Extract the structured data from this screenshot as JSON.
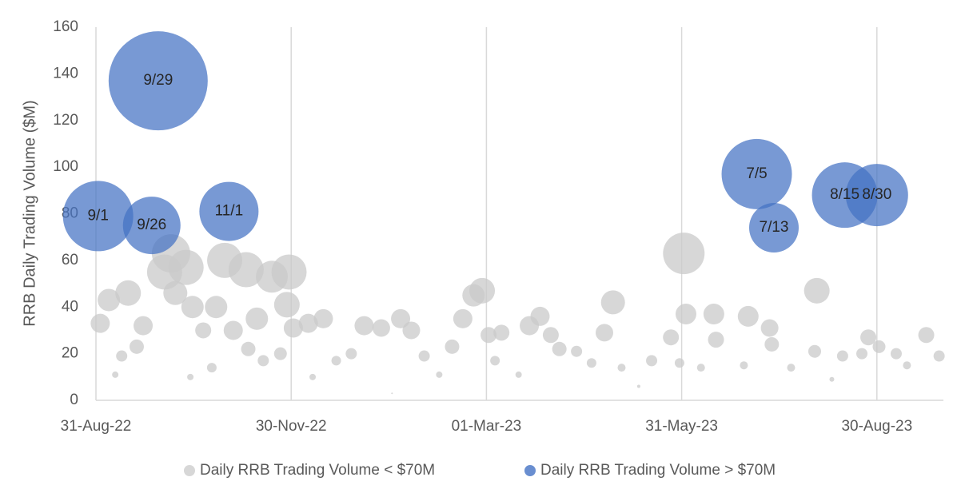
{
  "chart_data": {
    "type": "bubble",
    "y_label": "RRB Daily Trading Volume ($M)",
    "xlim": [
      "2022-08-31",
      "2023-09-30"
    ],
    "xticks": [
      {
        "value": "2022-08-31",
        "label": "31-Aug-22"
      },
      {
        "value": "2022-11-30",
        "label": "30-Nov-22"
      },
      {
        "value": "2023-03-01",
        "label": "01-Mar-23"
      },
      {
        "value": "2023-05-31",
        "label": "31-May-23"
      },
      {
        "value": "2023-08-30",
        "label": "30-Aug-23"
      }
    ],
    "ylim": [
      0,
      160
    ],
    "yticks": [
      0,
      20,
      40,
      60,
      80,
      100,
      120,
      140,
      160
    ],
    "grid": "x",
    "legend": "bottom",
    "series": [
      {
        "name": "Daily RRB Trading Volume < $70M",
        "color": "#c9c9c9",
        "x": [
          "2022-09-02",
          "2022-09-06",
          "2022-09-09",
          "2022-09-12",
          "2022-09-15",
          "2022-09-19",
          "2022-09-22",
          "2022-10-02",
          "2022-10-05",
          "2022-10-07",
          "2022-10-12",
          "2022-10-14",
          "2022-10-15",
          "2022-10-20",
          "2022-10-24",
          "2022-10-26",
          "2022-10-30",
          "2022-11-03",
          "2022-11-09",
          "2022-11-10",
          "2022-11-14",
          "2022-11-17",
          "2022-11-21",
          "2022-11-25",
          "2022-11-28",
          "2022-11-29",
          "2022-12-01",
          "2022-12-08",
          "2022-12-10",
          "2022-12-15",
          "2022-12-21",
          "2022-12-28",
          "2023-01-03",
          "2023-01-11",
          "2023-01-16",
          "2023-01-20",
          "2023-01-25",
          "2023-01-31",
          "2023-02-07",
          "2023-02-13",
          "2023-02-18",
          "2023-02-23",
          "2023-02-27",
          "2023-03-02",
          "2023-03-05",
          "2023-03-08",
          "2023-03-16",
          "2023-03-21",
          "2023-03-26",
          "2023-03-31",
          "2023-04-04",
          "2023-04-12",
          "2023-04-19",
          "2023-04-25",
          "2023-04-29",
          "2023-05-03",
          "2023-05-11",
          "2023-05-17",
          "2023-05-26",
          "2023-05-30",
          "2023-06-01",
          "2023-06-02",
          "2023-06-09",
          "2023-06-15",
          "2023-06-16",
          "2023-06-29",
          "2023-07-01",
          "2023-07-11",
          "2023-07-12",
          "2023-07-21",
          "2023-08-01",
          "2023-08-02",
          "2023-08-09",
          "2023-08-14",
          "2023-08-23",
          "2023-08-26",
          "2023-08-31",
          "2023-09-08",
          "2023-09-13",
          "2023-09-22",
          "2023-09-28"
        ],
        "values": [
          33,
          43,
          11,
          19,
          46,
          23,
          32,
          55,
          63,
          46,
          57,
          10,
          40,
          30,
          14,
          40,
          60,
          30,
          56,
          22,
          35,
          17,
          53,
          20,
          41,
          55,
          31,
          33,
          10,
          35,
          17,
          20,
          32,
          31,
          3,
          35,
          30,
          19,
          11,
          23,
          35,
          45,
          47,
          28,
          17,
          29,
          11,
          32,
          36,
          28,
          22,
          21,
          16,
          29,
          42,
          14,
          6,
          17,
          27,
          16,
          63,
          37,
          14,
          37,
          26,
          15,
          36,
          31,
          24,
          14,
          21,
          47,
          9,
          19,
          20,
          27,
          23,
          20,
          15,
          28,
          19
        ],
        "sizes": [
          12,
          14,
          4,
          7,
          16,
          9,
          12,
          22,
          24,
          15,
          22,
          4,
          14,
          10,
          6,
          14,
          22,
          12,
          22,
          9,
          14,
          7,
          20,
          8,
          16,
          22,
          12,
          12,
          4,
          12,
          6,
          7,
          12,
          11,
          1,
          12,
          11,
          7,
          4,
          9,
          12,
          14,
          16,
          10,
          6,
          10,
          4,
          12,
          12,
          10,
          9,
          7,
          6,
          11,
          15,
          5,
          2,
          7,
          10,
          6,
          26,
          13,
          5,
          13,
          10,
          5,
          13,
          11,
          9,
          5,
          8,
          16,
          3,
          7,
          7,
          10,
          8,
          7,
          5,
          10,
          7
        ]
      },
      {
        "name": "Daily RRB Trading Volume > $70M",
        "color": "#4472c4",
        "x": [
          "2022-09-01",
          "2022-09-26",
          "2022-09-29",
          "2022-11-01",
          "2023-07-05",
          "2023-07-13",
          "2023-08-15",
          "2023-08-30"
        ],
        "values": [
          79,
          75,
          137,
          81,
          97,
          74,
          88,
          88
        ],
        "sizes": [
          44,
          36,
          62,
          37,
          44,
          31,
          41,
          39
        ],
        "labels": [
          "9/1",
          "9/26",
          "9/29",
          "11/1",
          "7/5",
          "7/13",
          "8/15",
          "8/30"
        ]
      }
    ]
  }
}
